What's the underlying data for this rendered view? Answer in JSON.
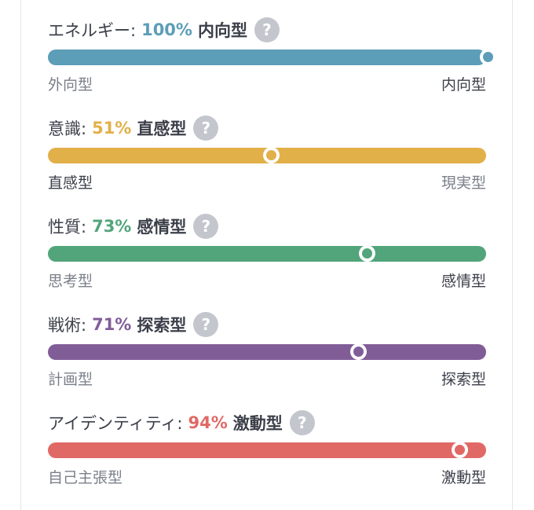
{
  "traits": [
    {
      "name": "エネルギー:",
      "percent": "100%",
      "type": "内向型",
      "help": "?",
      "value": 1.0,
      "color": "#5c9db8",
      "left_label": "外向型",
      "right_label": "内向型",
      "active_side": "right"
    },
    {
      "name": "意識:",
      "percent": "51%",
      "type": "直感型",
      "help": "?",
      "value": 0.51,
      "color": "#e1b049",
      "left_label": "直感型",
      "right_label": "現実型",
      "active_side": "left"
    },
    {
      "name": "性質:",
      "percent": "73%",
      "type": "感情型",
      "help": "?",
      "value": 0.73,
      "color": "#52a57a",
      "left_label": "思考型",
      "right_label": "感情型",
      "active_side": "right"
    },
    {
      "name": "戦術:",
      "percent": "71%",
      "type": "探索型",
      "help": "?",
      "value": 0.71,
      "color": "#815d98",
      "left_label": "計画型",
      "right_label": "探索型",
      "active_side": "right"
    },
    {
      "name": "アイデンティティ:",
      "percent": "94%",
      "type": "激動型",
      "help": "?",
      "value": 0.94,
      "color": "#e06966",
      "left_label": "自己主張型",
      "right_label": "激動型",
      "active_side": "right"
    }
  ]
}
